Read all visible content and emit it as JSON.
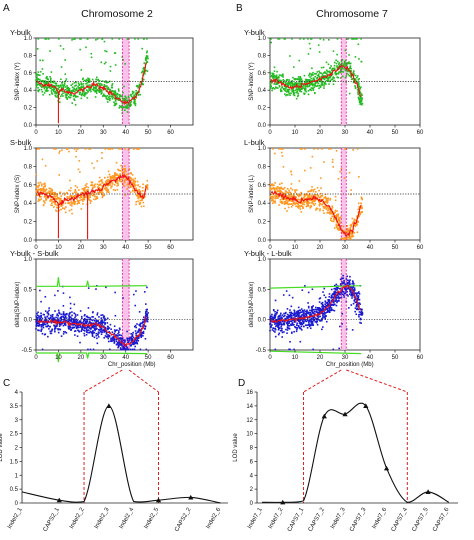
{
  "figure": {
    "panel_letters": [
      "A",
      "B",
      "C",
      "D"
    ]
  },
  "colors": {
    "y_bulk_points": "#22bb22",
    "s_bulk_points": "#ff9922",
    "l_bulk_points": "#ff9922",
    "delta_points": "#1a1ad0",
    "fit_line": "#ee1111",
    "ci_line": "#44dd22",
    "highlight_fill": "#f7b7e8",
    "highlight_edge": "#e01890",
    "connector": "#e02020"
  },
  "chart_data": [
    {
      "id": "A",
      "title": "Chromosome 2",
      "type": "scatter",
      "xlabel": "Chr_position (Mb)",
      "xlim": [
        0,
        70
      ],
      "xticks": [
        0,
        10,
        20,
        30,
        40,
        50,
        60
      ],
      "data_xmax": 50,
      "highlight_region": [
        38.5,
        41.5
      ],
      "subplots": [
        {
          "label": "Y-bulk",
          "ylabel": "SNP-index (Y)",
          "ylim": [
            0,
            1
          ],
          "yticks": [
            0,
            0.2,
            0.4,
            0.6,
            0.8,
            1.0
          ],
          "threshold": 0.5,
          "fit": [
            [
              0.5,
              0.5
            ],
            [
              3,
              0.47
            ],
            [
              6,
              0.46
            ],
            [
              8,
              0.44
            ],
            [
              10,
              0.38
            ],
            [
              11,
              0.41
            ],
            [
              14,
              0.38
            ],
            [
              17,
              0.36
            ],
            [
              20,
              0.4
            ],
            [
              23,
              0.43
            ],
            [
              26,
              0.46
            ],
            [
              28,
              0.44
            ],
            [
              30,
              0.42
            ],
            [
              32,
              0.38
            ],
            [
              34,
              0.36
            ],
            [
              36,
              0.3
            ],
            [
              38,
              0.28
            ],
            [
              40,
              0.25
            ],
            [
              42,
              0.27
            ],
            [
              44,
              0.32
            ],
            [
              46,
              0.4
            ],
            [
              48,
              0.58
            ],
            [
              49.5,
              0.76
            ]
          ],
          "spikes": [
            [
              10,
              0.02
            ]
          ]
        },
        {
          "label": "S-bulk",
          "ylabel": "SNP-index (S)",
          "ylim": [
            0,
            1
          ],
          "yticks": [
            0,
            0.2,
            0.4,
            0.6,
            0.8,
            1.0
          ],
          "threshold": 0.5,
          "fit": [
            [
              0.5,
              0.52
            ],
            [
              3,
              0.5
            ],
            [
              6,
              0.48
            ],
            [
              8,
              0.46
            ],
            [
              10,
              0.38
            ],
            [
              11,
              0.42
            ],
            [
              14,
              0.43
            ],
            [
              17,
              0.45
            ],
            [
              20,
              0.49
            ],
            [
              23,
              0.51
            ],
            [
              26,
              0.53
            ],
            [
              28,
              0.55
            ],
            [
              30,
              0.58
            ],
            [
              32,
              0.62
            ],
            [
              34,
              0.64
            ],
            [
              36,
              0.67
            ],
            [
              38,
              0.7
            ],
            [
              40,
              0.68
            ],
            [
              42,
              0.64
            ],
            [
              44,
              0.57
            ],
            [
              46,
              0.5
            ],
            [
              48,
              0.46
            ],
            [
              49.5,
              0.62
            ]
          ],
          "spikes": [
            [
              10,
              0.02
            ],
            [
              23,
              0.01
            ]
          ]
        },
        {
          "label": "Y-bulk - S-bulk",
          "ylabel": "delta(SNP-index)",
          "ylim": [
            -0.5,
            1.0
          ],
          "yticks": [
            -0.5,
            0.0,
            0.5,
            1.0
          ],
          "threshold": 0.0,
          "fit": [
            [
              0.5,
              -0.02
            ],
            [
              4,
              -0.04
            ],
            [
              8,
              -0.02
            ],
            [
              10,
              -0.05
            ],
            [
              12,
              -0.03
            ],
            [
              16,
              -0.06
            ],
            [
              20,
              -0.08
            ],
            [
              24,
              -0.09
            ],
            [
              27,
              -0.07
            ],
            [
              30,
              -0.12
            ],
            [
              33,
              -0.22
            ],
            [
              36,
              -0.3
            ],
            [
              38,
              -0.38
            ],
            [
              40,
              -0.42
            ],
            [
              42,
              -0.4
            ],
            [
              44,
              -0.32
            ],
            [
              46,
              -0.25
            ],
            [
              48,
              -0.12
            ],
            [
              49.5,
              0.1
            ]
          ],
          "ci_upper": [
            [
              0,
              0.55
            ],
            [
              9.5,
              0.55
            ],
            [
              10,
              0.7
            ],
            [
              10.5,
              0.55
            ],
            [
              22.5,
              0.55
            ],
            [
              23,
              0.64
            ],
            [
              23.5,
              0.55
            ],
            [
              49.5,
              0.56
            ]
          ],
          "ci_lower": [
            [
              0,
              -0.55
            ],
            [
              9.5,
              -0.55
            ],
            [
              10,
              -0.7
            ],
            [
              10.5,
              -0.55
            ],
            [
              22.5,
              -0.55
            ],
            [
              23,
              -0.64
            ],
            [
              23.5,
              -0.55
            ],
            [
              49.5,
              -0.56
            ]
          ]
        }
      ],
      "bulk_labels": [
        "Y-bulk",
        "S-bulk",
        "Y-bulk - S-bulk"
      ],
      "y_axis_labels": [
        "SNP-index (Y)",
        "SNP-index (S)",
        "delta(SNP-index)"
      ]
    },
    {
      "id": "B",
      "title": "Chromosome 7",
      "type": "scatter",
      "xlabel": "Chr_position (Mb)",
      "xlim": [
        0,
        60
      ],
      "xticks": [
        0,
        10,
        20,
        30,
        40,
        50,
        60
      ],
      "data_xmax": 37,
      "highlight_region": [
        28.5,
        30.5
      ],
      "subplots": [
        {
          "label": "Y-bulk",
          "ylabel": "SNP-index (Y)",
          "ylim": [
            0,
            1
          ],
          "yticks": [
            0,
            0.2,
            0.4,
            0.6,
            0.8,
            1.0
          ],
          "threshold": 0.5,
          "fit": [
            [
              0.5,
              0.52
            ],
            [
              3,
              0.5
            ],
            [
              6,
              0.46
            ],
            [
              9,
              0.43
            ],
            [
              12,
              0.45
            ],
            [
              15,
              0.48
            ],
            [
              18,
              0.5
            ],
            [
              21,
              0.54
            ],
            [
              24,
              0.58
            ],
            [
              27,
              0.64
            ],
            [
              29,
              0.68
            ],
            [
              31,
              0.66
            ],
            [
              33,
              0.58
            ],
            [
              35,
              0.45
            ],
            [
              36.5,
              0.3
            ]
          ],
          "spikes": []
        },
        {
          "label": "L-bulk",
          "ylabel": "SNP-index (L)",
          "ylim": [
            0,
            1
          ],
          "yticks": [
            0,
            0.2,
            0.4,
            0.6,
            0.8,
            1.0
          ],
          "threshold": 0.5,
          "fit": [
            [
              0.5,
              0.52
            ],
            [
              3,
              0.5
            ],
            [
              6,
              0.47
            ],
            [
              9,
              0.44
            ],
            [
              12,
              0.42
            ],
            [
              15,
              0.44
            ],
            [
              18,
              0.46
            ],
            [
              21,
              0.42
            ],
            [
              24,
              0.35
            ],
            [
              27,
              0.2
            ],
            [
              29,
              0.08
            ],
            [
              31,
              0.05
            ],
            [
              33,
              0.12
            ],
            [
              35,
              0.22
            ],
            [
              36.5,
              0.4
            ]
          ],
          "spikes": []
        },
        {
          "label": "Y-bulk - L-bulk",
          "ylabel": "delta(SNP-index)",
          "ylim": [
            -0.5,
            1.0
          ],
          "yticks": [
            -0.5,
            0.0,
            0.5,
            1.0
          ],
          "threshold": 0.0,
          "fit": [
            [
              0.5,
              -0.02
            ],
            [
              4,
              -0.02
            ],
            [
              8,
              0.0
            ],
            [
              12,
              0.02
            ],
            [
              16,
              0.04
            ],
            [
              20,
              0.1
            ],
            [
              23,
              0.2
            ],
            [
              26,
              0.38
            ],
            [
              29,
              0.52
            ],
            [
              31,
              0.56
            ],
            [
              33,
              0.48
            ],
            [
              35,
              0.3
            ],
            [
              36.5,
              0.1
            ]
          ],
          "ci_upper": [
            [
              0,
              0.52
            ],
            [
              36.5,
              0.56
            ]
          ],
          "ci_lower": [
            [
              0,
              -0.52
            ],
            [
              36.5,
              -0.56
            ]
          ]
        }
      ],
      "bulk_labels": [
        "Y-bulk",
        "L-bulk",
        "Y-bulk - L-bulk"
      ],
      "y_axis_labels": [
        "SNP-index (Y)",
        "SNP-index (L)",
        "delta(SNP-index)"
      ]
    },
    {
      "id": "C",
      "type": "line",
      "ylabel": "LOD value",
      "ylim": [
        0,
        4
      ],
      "yticks": [
        0,
        0.5,
        1,
        1.5,
        2,
        2.5,
        3,
        3.5,
        4
      ],
      "categories": [
        "Indel2_1",
        "CAPS2_1",
        "Indel2_2",
        "Indel2_3",
        "Indel2_4",
        "Indel2_5",
        "CAPS2_2",
        "Indel2_6"
      ],
      "x": [
        0,
        1.5,
        2.5,
        3.5,
        4.5,
        5.5,
        6.8,
        8.0
      ],
      "xlim": [
        0,
        8.3
      ],
      "values": [
        0.4,
        0.1,
        0.05,
        3.5,
        0.05,
        0.1,
        0.2,
        0.0
      ],
      "marked": [
        false,
        true,
        false,
        true,
        false,
        true,
        true,
        false
      ],
      "ylabel_axis": "LOD value"
    },
    {
      "id": "D",
      "type": "line",
      "ylabel": "LOD value",
      "ylim": [
        0,
        16
      ],
      "yticks": [
        0,
        2,
        4,
        6,
        8,
        10,
        12,
        14,
        16
      ],
      "categories": [
        "Indel7_1",
        "Indel7_2",
        "CAPS7_1",
        "CAPS7_2",
        "Indel7_3",
        "CAPS7_3",
        "Indel7_6",
        "CAPS7_4",
        "CAPS7_5",
        "CAPS7_6"
      ],
      "x": [
        0,
        1.0,
        2.0,
        3.0,
        4.0,
        5.0,
        6.0,
        7.0,
        8.0,
        9.0
      ],
      "xlim": [
        0,
        9.2
      ],
      "values": [
        0.1,
        0.1,
        0.3,
        12.5,
        12.8,
        14.0,
        5.0,
        0.1,
        1.6,
        0.1
      ],
      "marked": [
        false,
        true,
        false,
        true,
        true,
        true,
        true,
        false,
        true,
        false
      ],
      "ylabel_axis": "LOD value"
    }
  ]
}
